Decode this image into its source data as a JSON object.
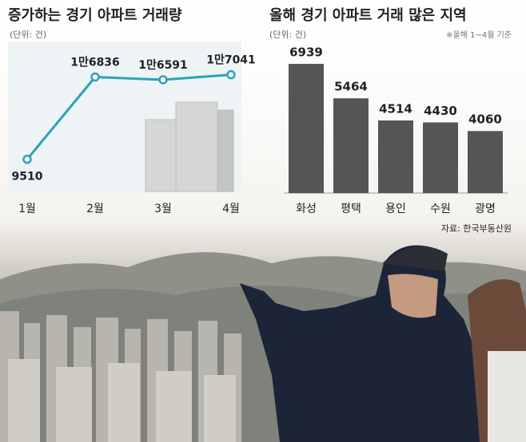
{
  "chart_data": [
    {
      "type": "line",
      "title": "증가하는 경기 아파트 거래량",
      "subtitle": "(단위: 건)",
      "categories": [
        "1월",
        "2월",
        "3월",
        "4월"
      ],
      "values": [
        9510,
        16836,
        16591,
        17041
      ],
      "value_labels": [
        "9510",
        "1만6836",
        "1만6591",
        "1만7041"
      ],
      "color": "#2aa3b5",
      "ylim": [
        6500,
        20000
      ]
    },
    {
      "type": "bar",
      "title": "올해 경기 아파트 거래 많은 지역",
      "subtitle": "(단위: 건)",
      "note": "※올해 1~4월 기준",
      "categories": [
        "화성",
        "평택",
        "용인",
        "수원",
        "광명"
      ],
      "values": [
        6939,
        5464,
        4514,
        4430,
        4060
      ],
      "color": "#555555",
      "ylim": [
        1400,
        7900
      ],
      "source": "자료: 한국부동산원"
    }
  ]
}
